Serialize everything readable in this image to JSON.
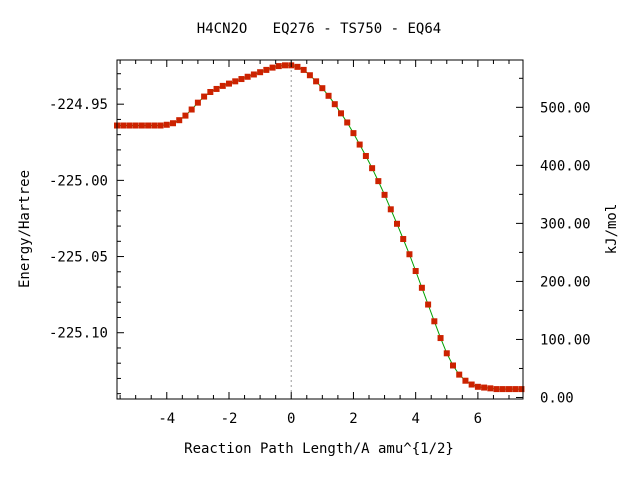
{
  "chart_data": {
    "type": "line",
    "title": "H4CN2O   EQ276 - TS750 - EQ64",
    "xlabel": "Reaction Path Length/A amu^{1/2}",
    "ylabel": "Energy/Hartree",
    "y2label": "kJ/mol",
    "xlim": [
      -5.6,
      7.45
    ],
    "ylim": [
      -225.1435,
      -224.921
    ],
    "x_ticks": [
      -4,
      -2,
      0,
      2,
      4,
      6
    ],
    "x_tick_labels": [
      "-4",
      "-2",
      "0",
      "2",
      "4",
      "6"
    ],
    "y_ticks": [
      -224.95,
      -225.0,
      -225.05,
      -225.1
    ],
    "y_tick_labels": [
      "-224.95",
      "-225.00",
      "-225.05",
      "-225.10"
    ],
    "y2_ticks": [
      0,
      100,
      200,
      300,
      400,
      500
    ],
    "y2_tick_labels": [
      "0.00",
      "100.00",
      "200.00",
      "300.00",
      "400.00",
      "500.00"
    ],
    "y2_zero_hartree": -225.1425,
    "hartree_to_kjmol": 2625.5,
    "ts_marker_x": 0,
    "grid": false,
    "series": [
      {
        "line_color": "#00a000",
        "marker_color": "#cc2200",
        "x": [
          -5.6,
          -5.4,
          -5.2,
          -5.0,
          -4.8,
          -4.6,
          -4.4,
          -4.2,
          -4.0,
          -3.8,
          -3.6,
          -3.4,
          -3.2,
          -3.0,
          -2.8,
          -2.6,
          -2.4,
          -2.2,
          -2.0,
          -1.8,
          -1.6,
          -1.4,
          -1.2,
          -1.0,
          -0.8,
          -0.6,
          -0.4,
          -0.2,
          0.0,
          0.2,
          0.4,
          0.6,
          0.8,
          1.0,
          1.2,
          1.4,
          1.6,
          1.8,
          2.0,
          2.2,
          2.4,
          2.6,
          2.8,
          3.0,
          3.2,
          3.4,
          3.6,
          3.8,
          4.0,
          4.2,
          4.4,
          4.6,
          4.8,
          5.0,
          5.2,
          5.4,
          5.6,
          5.8,
          6.0,
          6.2,
          6.4,
          6.6,
          6.8,
          7.0,
          7.2,
          7.4
        ],
        "y": [
          -224.964,
          -224.964,
          -224.964,
          -224.964,
          -224.964,
          -224.964,
          -224.964,
          -224.964,
          -224.9635,
          -224.9625,
          -224.9605,
          -224.9575,
          -224.9535,
          -224.949,
          -224.945,
          -224.942,
          -224.94,
          -224.938,
          -224.9365,
          -224.935,
          -224.9335,
          -224.932,
          -224.9305,
          -224.929,
          -224.9275,
          -224.926,
          -224.925,
          -224.9245,
          -224.9245,
          -224.9255,
          -224.9275,
          -224.931,
          -224.935,
          -224.9395,
          -224.9445,
          -224.95,
          -224.956,
          -224.962,
          -224.969,
          -224.9765,
          -224.984,
          -224.992,
          -225.0005,
          -225.0095,
          -225.019,
          -225.0285,
          -225.0385,
          -225.0485,
          -225.0595,
          -225.0705,
          -225.0815,
          -225.0925,
          -225.1035,
          -225.1135,
          -225.1215,
          -225.1275,
          -225.1315,
          -225.134,
          -225.1355,
          -225.136,
          -225.1365,
          -225.137,
          -225.137,
          -225.137,
          -225.137,
          -225.137
        ]
      }
    ]
  }
}
